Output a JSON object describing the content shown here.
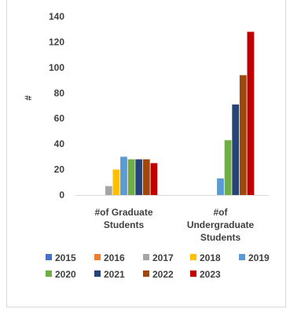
{
  "chart_data": {
    "type": "bar",
    "ylabel": "#",
    "ylim": [
      0,
      140
    ],
    "yticks": [
      "0",
      "20",
      "40",
      "60",
      "80",
      "100",
      "120",
      "140"
    ],
    "categories": [
      [
        "#of Graduate",
        "Students"
      ],
      [
        "#of",
        "Undergraduate",
        "Students"
      ]
    ],
    "series": [
      {
        "name": "2015",
        "color": "#4472C4",
        "values": [
          0,
          0
        ]
      },
      {
        "name": "2016",
        "color": "#ED7D31",
        "values": [
          0,
          0
        ]
      },
      {
        "name": "2017",
        "color": "#A5A5A5",
        "values": [
          7,
          0
        ]
      },
      {
        "name": "2018",
        "color": "#FFC000",
        "values": [
          20,
          0
        ]
      },
      {
        "name": "2019",
        "color": "#5B9BD5",
        "values": [
          30,
          13
        ]
      },
      {
        "name": "2020",
        "color": "#70AD47",
        "values": [
          28,
          43
        ]
      },
      {
        "name": "2021",
        "color": "#264478",
        "values": [
          28,
          71
        ]
      },
      {
        "name": "2022",
        "color": "#9E480E",
        "values": [
          28,
          94
        ]
      },
      {
        "name": "2023",
        "color": "#C00000",
        "values": [
          25,
          128
        ]
      }
    ],
    "grid": false,
    "legend": "bottom"
  }
}
